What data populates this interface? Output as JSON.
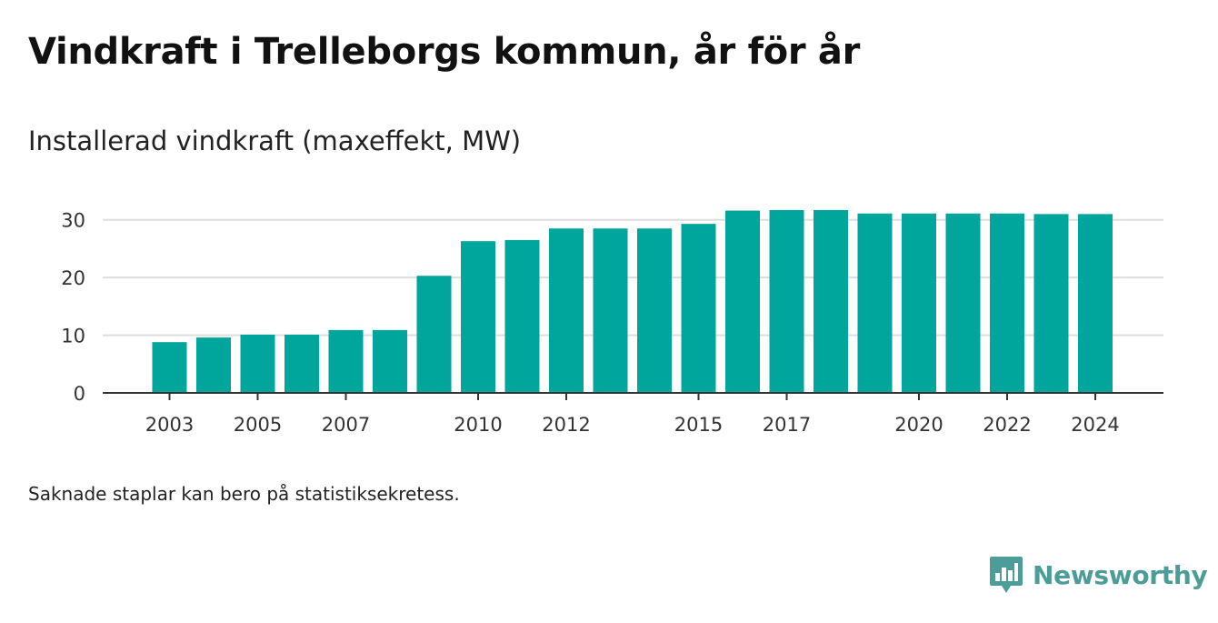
{
  "title": "Vindkraft i Trelleborgs kommun, år för år",
  "subtitle": "Installerad vindkraft (maxeffekt, MW)",
  "footnote": "Saknade staplar kan bero på statistiksekretess.",
  "brand": {
    "name": "Newsworthy",
    "color": "#4c9c98",
    "icon": "newsworthy-logo-icon"
  },
  "colors": {
    "bar": "#00a69c",
    "grid": "#dddddd",
    "axis": "#333333"
  },
  "chart_data": {
    "type": "bar",
    "title": "Vindkraft i Trelleborgs kommun, år för år",
    "ylabel": "Installerad vindkraft (maxeffekt, MW)",
    "xlabel": "",
    "categories": [
      "2003",
      "2004",
      "2005",
      "2006",
      "2007",
      "2008",
      "2009",
      "2010",
      "2011",
      "2012",
      "2013",
      "2014",
      "2015",
      "2016",
      "2017",
      "2018",
      "2019",
      "2020",
      "2021",
      "2022",
      "2023",
      "2024"
    ],
    "values": [
      8.8,
      9.6,
      10.1,
      10.1,
      10.9,
      10.9,
      20.3,
      26.3,
      26.5,
      28.5,
      28.5,
      28.5,
      29.3,
      31.6,
      31.7,
      31.7,
      31.1,
      31.1,
      31.1,
      31.1,
      31.0,
      31.0
    ],
    "x_tick_labels": [
      "2003",
      "2005",
      "2007",
      "2010",
      "2012",
      "2015",
      "2017",
      "2020",
      "2022",
      "2024"
    ],
    "y_ticks": [
      0,
      10,
      20,
      30
    ],
    "ylim": [
      0,
      35
    ],
    "grid": true,
    "legend": "none"
  }
}
